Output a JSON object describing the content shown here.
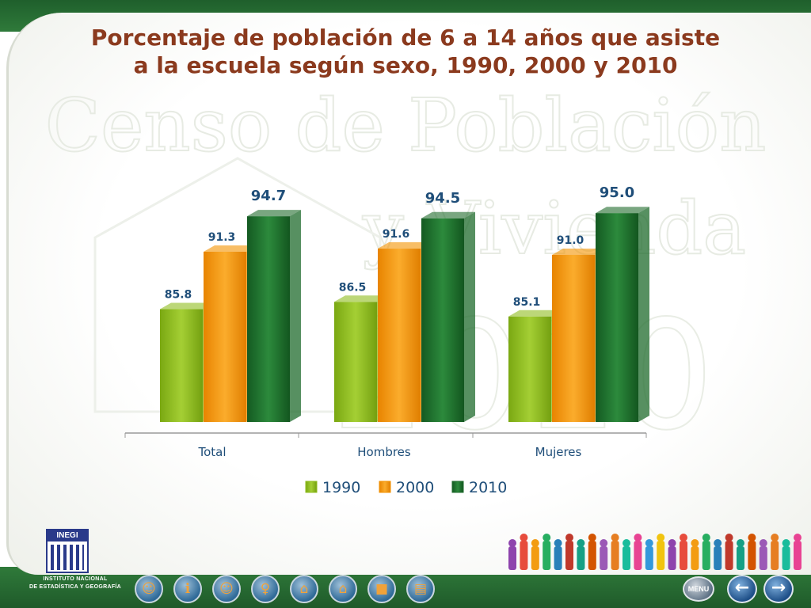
{
  "title": {
    "line1": "Porcentaje de población de 6 a 14 años que asiste",
    "line2": "a la escuela según sexo, 1990, 2000 y 2010"
  },
  "watermark": {
    "line1": "Censo de Población",
    "line2": "y Vivienda",
    "year": "2010"
  },
  "chart_data": {
    "type": "bar",
    "categories": [
      "Total",
      "Hombres",
      "Mujeres"
    ],
    "series": [
      {
        "name": "1990",
        "values": [
          85.8,
          86.5,
          85.1
        ],
        "labels": [
          "85.8",
          "86.5",
          "85.1"
        ],
        "color": "#8fbd1e"
      },
      {
        "name": "2000",
        "values": [
          91.3,
          91.6,
          91.0
        ],
        "labels": [
          "91.3",
          "91.6",
          "91.0"
        ],
        "color": "#f39200"
      },
      {
        "name": "2010",
        "values": [
          94.7,
          94.5,
          95.0
        ],
        "labels": [
          "94.7",
          "94.5",
          "95.0"
        ],
        "color": "#1f6b2c"
      }
    ],
    "ylim": [
      75,
      96
    ],
    "grid": false,
    "legend": "bottom"
  },
  "logo": {
    "name": "INEGI",
    "line1": "INSTITUTO NACIONAL",
    "line2": "DE ESTADÍSTICA Y GEOGRAFÍA"
  },
  "nav": {
    "icons": [
      "people-icon",
      "person-info-icon",
      "person-yellow-icon",
      "family-icon",
      "house-icon",
      "dwelling-icon",
      "map-icon",
      "document-icon"
    ],
    "menu_label": "MENU",
    "colors": {
      "frame": "#2f7a3a",
      "title": "#8b3a1e",
      "label": "#1f4e79"
    }
  }
}
